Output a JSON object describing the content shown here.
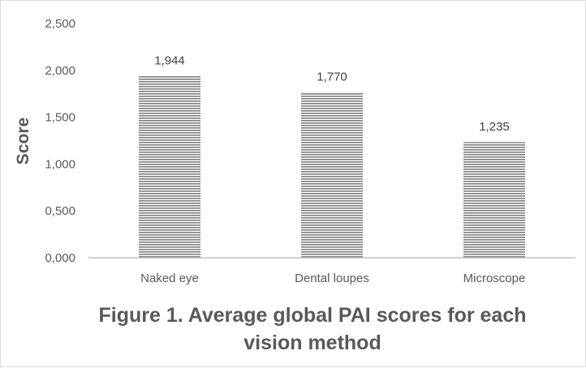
{
  "chart_data": {
    "type": "bar",
    "categories": [
      "Naked eye",
      "Dental loupes",
      "Microscope"
    ],
    "values": [
      1.944,
      1.77,
      1.235
    ],
    "value_labels": [
      "1,944",
      "1,770",
      "1,235"
    ],
    "ylim": [
      0,
      2.5
    ],
    "y_ticks": [
      0,
      0.5,
      1.0,
      1.5,
      2.0,
      2.5
    ],
    "y_tick_labels": [
      "0,000",
      "0,500",
      "1,000",
      "1,500",
      "2,000",
      "2,500"
    ],
    "ylabel": "Score",
    "xlabel": "",
    "title_lines": [
      "Figure 1. Average global PAI scores for each",
      "vision method"
    ],
    "grid": false,
    "legend": "none",
    "bar_pattern": "horizontal stripes",
    "colors": {
      "bar_stripe": "#7f7f7f",
      "bar_bg": "#ffffff",
      "axis": "#bfbfbf",
      "text": "#595959"
    }
  }
}
